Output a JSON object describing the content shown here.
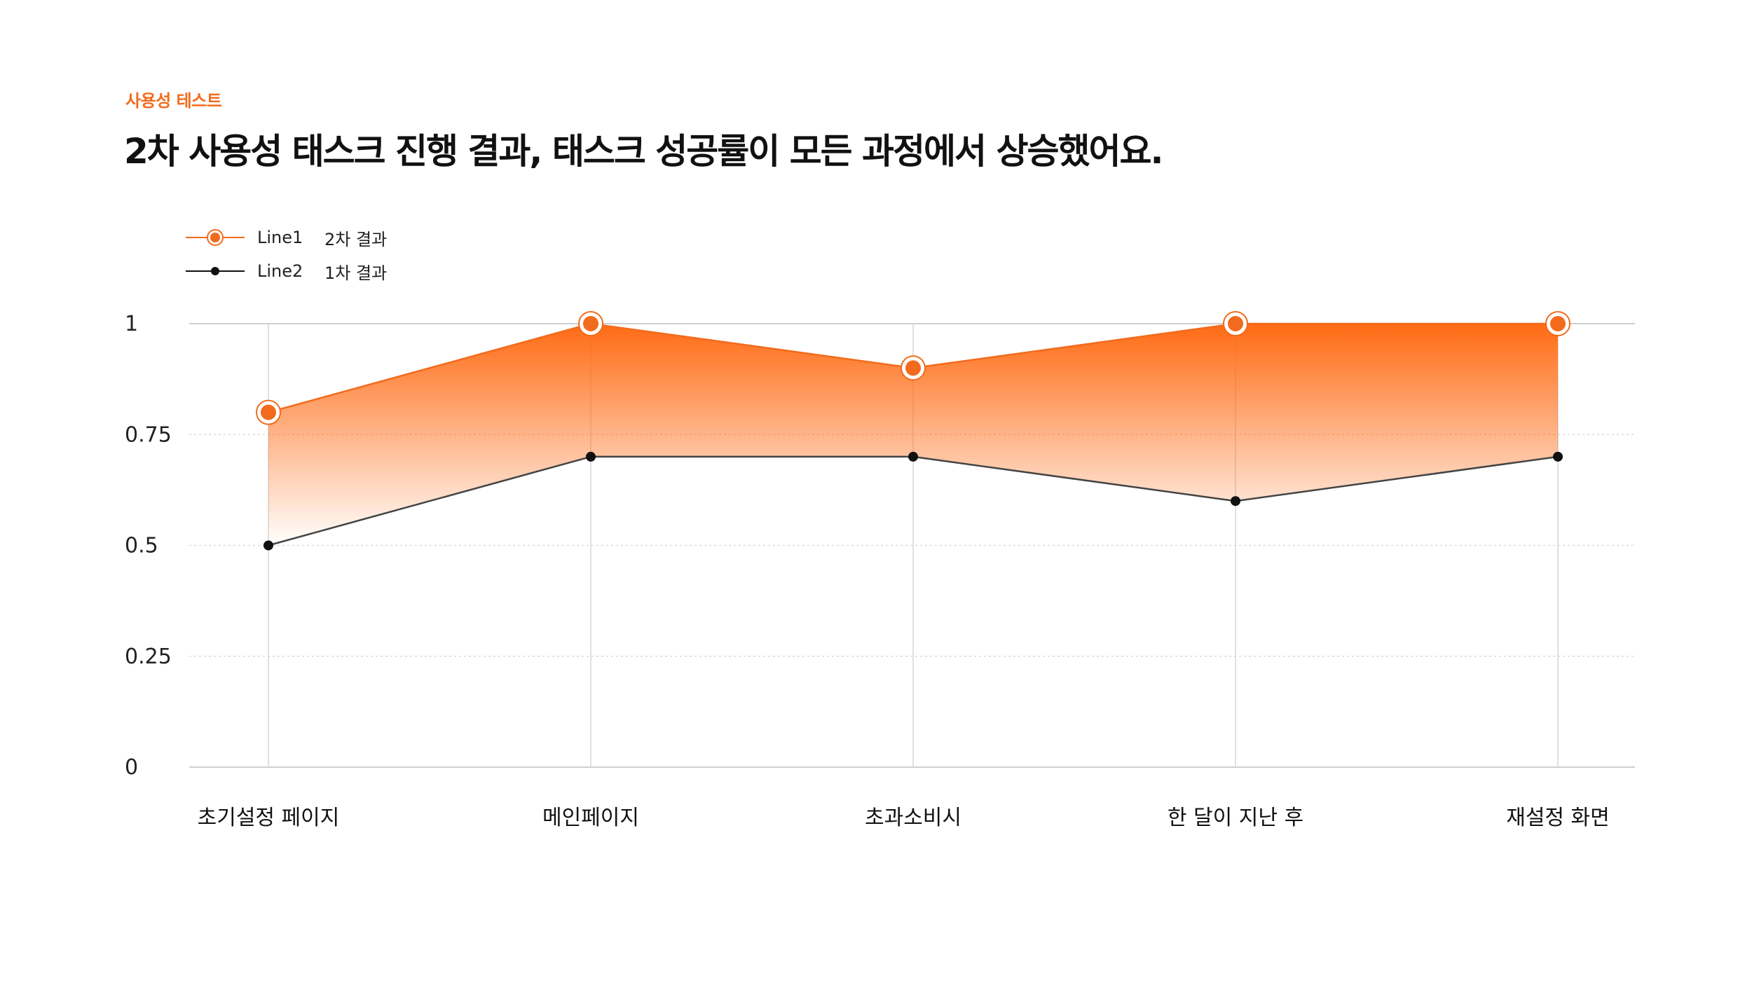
{
  "header": {
    "eyebrow": "사용성 테스트",
    "title": "2차 사용성 태스크 진행 결과, 태스크 성공률이 모든 과정에서 상승했어요."
  },
  "legend": {
    "items": [
      {
        "name": "Line1",
        "label": "2차 결과",
        "color": "#f26b1d"
      },
      {
        "name": "Line2",
        "label": "1차 결과",
        "color": "#111111"
      }
    ]
  },
  "chart_data": {
    "type": "area",
    "categories": [
      "초기설정 페이지",
      "메인페이지",
      "초과소비시",
      "한 달이 지난 후",
      "재설정 화면"
    ],
    "series": [
      {
        "name": "Line1",
        "label": "2차 결과",
        "values": [
          0.8,
          1.0,
          0.9,
          1.0,
          1.0
        ],
        "color": "#f26b1d"
      },
      {
        "name": "Line2",
        "label": "1차 결과",
        "values": [
          0.5,
          0.7,
          0.7,
          0.6,
          0.7
        ],
        "color": "#111111"
      }
    ],
    "yticks": [
      "0",
      "0.25",
      "0.5",
      "0.75",
      "1"
    ],
    "ylim": [
      0,
      1
    ],
    "grid": true,
    "legend_position": "top-left",
    "fill": "area between series, orange gradient"
  }
}
